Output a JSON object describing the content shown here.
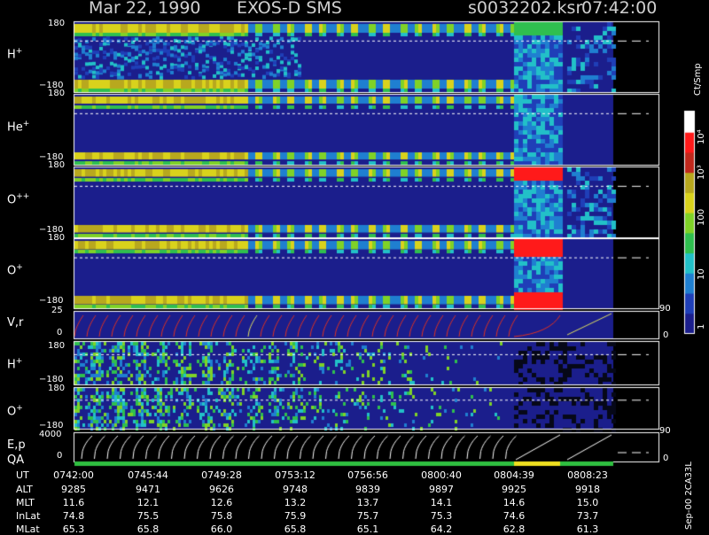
{
  "header": {
    "date": "Mar 22, 1990",
    "mission": "EXOS-D SMS",
    "file": "s0032202.ksr",
    "time": "07:42:00"
  },
  "panels": [
    {
      "label": "H",
      "sup": "+",
      "top": "180",
      "bottom": "−180"
    },
    {
      "label": "He",
      "sup": "+",
      "top": "180",
      "bottom": "−180"
    },
    {
      "label": "O",
      "sup": "++",
      "top": "180",
      "bottom": "−180"
    },
    {
      "label": "O",
      "sup": "+",
      "top": "180",
      "bottom": "−180"
    },
    {
      "label": "V,r",
      "sup": "",
      "top": "25",
      "bottom": "0",
      "right_top": "90",
      "right_bottom": "0"
    },
    {
      "label": "H",
      "sup": "+",
      "top": "180",
      "bottom": "−180"
    },
    {
      "label": "O",
      "sup": "+",
      "top": "180",
      "bottom": "−180"
    },
    {
      "label": "E,p",
      "sup": "",
      "top": "4000",
      "bottom": "0",
      "right_top": "90",
      "right_bottom": "0"
    }
  ],
  "qa_label": "QA",
  "colorbar": {
    "unit": "Ct/Smp",
    "ticks": [
      "10⁴",
      "10³",
      "100",
      "10",
      "1"
    ]
  },
  "footer_side": "Sep-00  2CA33L",
  "table": {
    "row_labels": [
      "UT",
      "ALT",
      "MLT",
      "InLat",
      "MLat"
    ],
    "columns": [
      [
        "0742:00",
        "9285",
        "11.6",
        "74.8",
        "65.3"
      ],
      [
        "0745:44",
        "9471",
        "12.1",
        "75.5",
        "65.8"
      ],
      [
        "0749:28",
        "9626",
        "12.6",
        "75.8",
        "66.0"
      ],
      [
        "0753:12",
        "9748",
        "13.2",
        "75.9",
        "65.8"
      ],
      [
        "0756:56",
        "9839",
        "13.7",
        "75.7",
        "65.1"
      ],
      [
        "0800:40",
        "9897",
        "14.1",
        "75.3",
        "64.2"
      ],
      [
        "0804:39",
        "9925",
        "14.6",
        "74.6",
        "62.8"
      ],
      [
        "0808:23",
        "9918",
        "15.0",
        "73.7",
        "61.3"
      ]
    ]
  },
  "chart_data": {
    "type": "heatmap",
    "title": "Mar 22, 1990   EXOS-D SMS",
    "x": [
      "0742:00",
      "0745:44",
      "0749:28",
      "0753:12",
      "0756:56",
      "0800:40",
      "0804:39",
      "0808:23"
    ],
    "panels": [
      "H+",
      "He+",
      "O++",
      "O+",
      "V,r",
      "H+",
      "O+",
      "E,p"
    ],
    "colorbar_unit": "Ct/Smp",
    "colorbar_ticks": [
      "10⁴",
      "10³",
      "100",
      "10",
      "1"
    ],
    "colorscale": [
      "#1b1e8c",
      "#1f3fb8",
      "#1f7fd0",
      "#22c0c8",
      "#2fbf4f",
      "#7fd227",
      "#d9d21c",
      "#b8a81e",
      "#c0281c",
      "#ff1a1a",
      "#ffffff"
    ]
  }
}
